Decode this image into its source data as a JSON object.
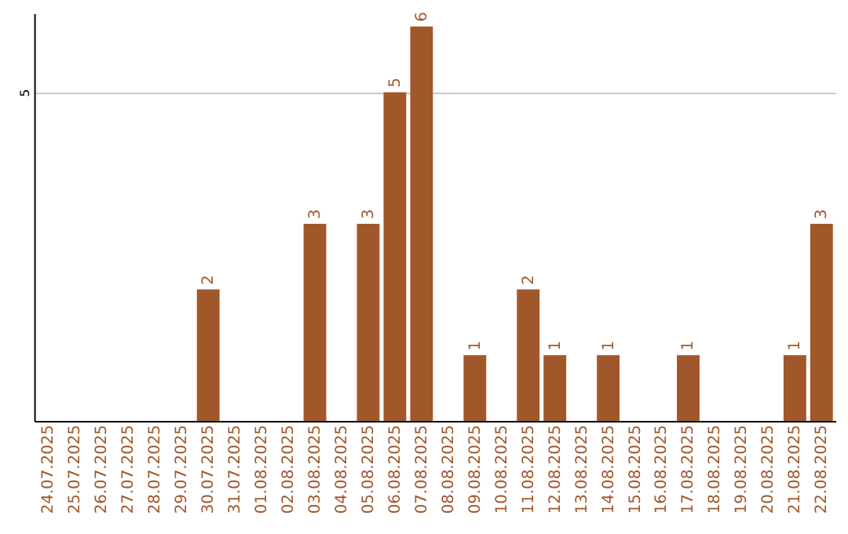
{
  "chart_data": {
    "type": "bar",
    "categories": [
      "24.07.2025",
      "25.07.2025",
      "26.07.2025",
      "27.07.2025",
      "28.07.2025",
      "29.07.2025",
      "30.07.2025",
      "31.07.2025",
      "01.08.2025",
      "02.08.2025",
      "03.08.2025",
      "04.08.2025",
      "05.08.2025",
      "06.08.2025",
      "07.08.2025",
      "08.08.2025",
      "09.08.2025",
      "10.08.2025",
      "11.08.2025",
      "12.08.2025",
      "13.08.2025",
      "14.08.2025",
      "15.08.2025",
      "16.08.2025",
      "17.08.2025",
      "18.08.2025",
      "19.08.2025",
      "20.08.2025",
      "21.08.2025",
      "22.08.2025"
    ],
    "values": [
      0,
      0,
      0,
      0,
      0,
      0,
      2,
      0,
      0,
      0,
      3,
      0,
      3,
      5,
      6,
      0,
      1,
      0,
      2,
      1,
      0,
      1,
      0,
      0,
      1,
      0,
      0,
      0,
      1,
      3
    ],
    "value_labels": [
      null,
      null,
      null,
      null,
      null,
      null,
      "2",
      null,
      null,
      null,
      "3",
      null,
      "3",
      "5",
      "6",
      null,
      "1",
      null,
      "2",
      "1",
      null,
      "1",
      null,
      null,
      "1",
      null,
      null,
      null,
      "1",
      "3"
    ],
    "color": "#a0572a",
    "ylim": [
      0,
      6.2
    ],
    "yticks": [
      5
    ],
    "grid": "y"
  }
}
